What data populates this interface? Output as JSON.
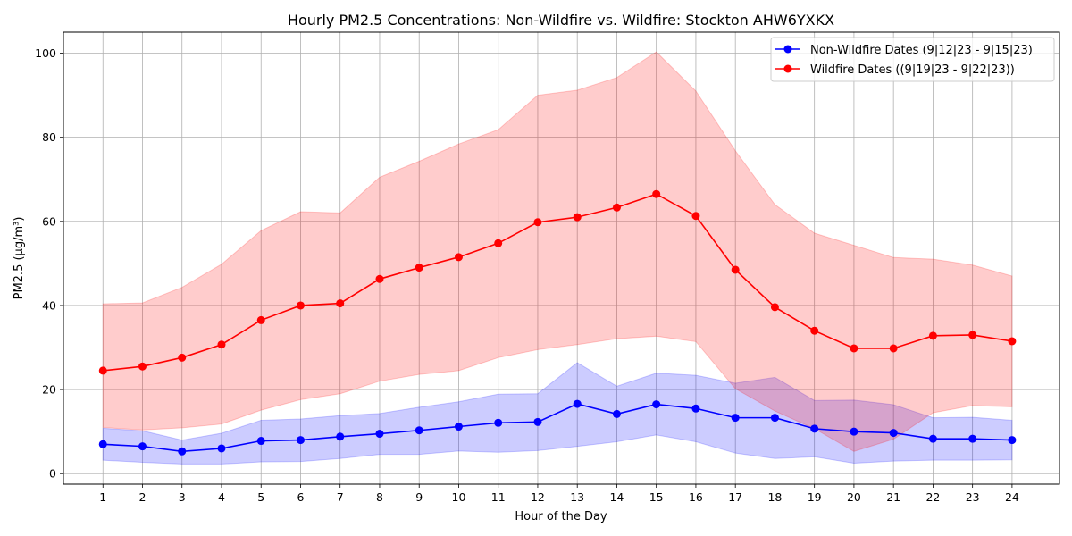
{
  "chart_data": {
    "type": "line",
    "title": "Hourly PM2.5 Concentrations: Non-Wildfire vs. Wildfire: Stockton AHW6YXKX",
    "xlabel": "Hour of the Day",
    "ylabel": "PM2.5 (µg/m³)",
    "x": [
      1,
      2,
      3,
      4,
      5,
      6,
      7,
      8,
      9,
      10,
      11,
      12,
      13,
      14,
      15,
      16,
      17,
      18,
      19,
      20,
      21,
      22,
      23,
      24
    ],
    "xlim": [
      0,
      25.2
    ],
    "ylim": [
      -2.5,
      105
    ],
    "yticks": [
      0,
      20,
      40,
      60,
      80,
      100
    ],
    "grid": true,
    "legend_position": "top-right",
    "series": [
      {
        "name": "Non-Wildfire Dates (9|12|23 - 9|15|23)",
        "color": "#0000ff",
        "band_color": "#0000ff",
        "values": [
          7.0,
          6.5,
          5.3,
          6.0,
          7.8,
          8.0,
          8.8,
          9.5,
          10.3,
          11.2,
          12.1,
          12.3,
          16.6,
          14.2,
          16.5,
          15.5,
          13.3,
          13.3,
          10.7,
          10.0,
          9.7,
          8.3,
          8.3,
          8.0
        ],
        "upper": [
          10.8,
          10.2,
          8.0,
          9.6,
          12.7,
          13.0,
          13.8,
          14.3,
          15.8,
          17.1,
          18.9,
          19.0,
          26.4,
          20.8,
          23.9,
          23.4,
          21.5,
          22.9,
          17.4,
          17.5,
          16.4,
          13.3,
          13.4,
          12.7
        ],
        "lower": [
          3.2,
          2.7,
          2.3,
          2.3,
          2.8,
          2.9,
          3.6,
          4.6,
          4.6,
          5.4,
          5.1,
          5.5,
          6.5,
          7.6,
          9.2,
          7.6,
          4.9,
          3.6,
          4.0,
          2.5,
          3.0,
          3.2,
          3.2,
          3.3
        ]
      },
      {
        "name": "Wildfire Dates ((9|19|23 - 9|22|23))",
        "color": "#ff0000",
        "band_color": "#ff0000",
        "values": [
          24.5,
          25.5,
          27.6,
          30.7,
          36.5,
          40.0,
          40.5,
          46.3,
          49.0,
          51.5,
          54.8,
          59.8,
          61.0,
          63.3,
          66.5,
          61.3,
          48.5,
          39.6,
          34.0,
          29.8,
          29.8,
          32.8,
          33.0,
          31.5
        ],
        "upper": [
          40.4,
          40.6,
          44.3,
          49.8,
          57.8,
          62.3,
          62.0,
          70.5,
          74.3,
          78.4,
          81.8,
          90.0,
          91.2,
          94.2,
          100.3,
          91.0,
          76.8,
          64.0,
          57.2,
          54.3,
          51.4,
          51.0,
          49.6,
          47.0
        ],
        "lower": [
          11.0,
          10.4,
          10.9,
          11.8,
          15.1,
          17.6,
          19.0,
          22.0,
          23.6,
          24.5,
          27.6,
          29.5,
          30.7,
          32.1,
          32.7,
          31.4,
          20.2,
          14.9,
          10.7,
          5.3,
          8.2,
          14.5,
          16.2,
          15.9
        ]
      }
    ]
  }
}
